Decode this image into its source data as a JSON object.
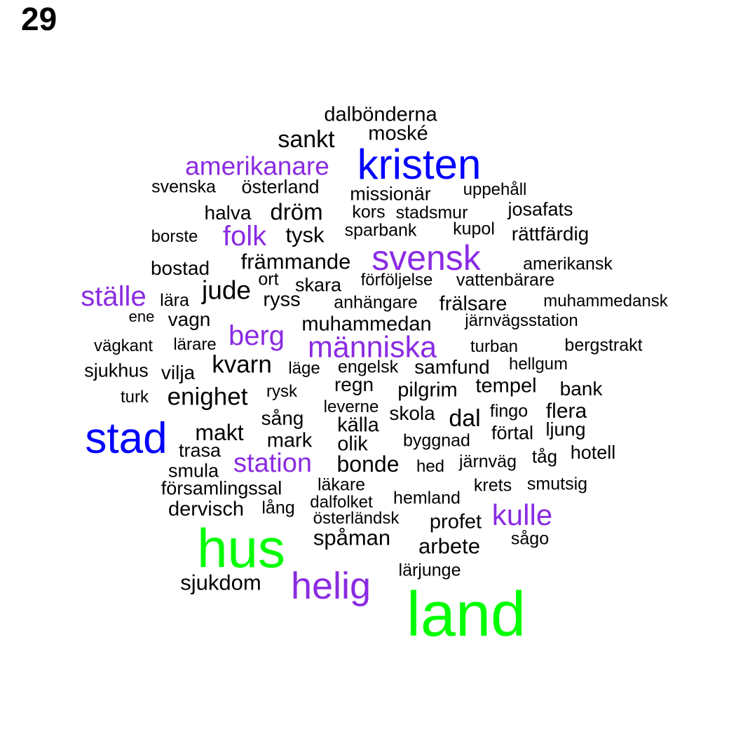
{
  "page_number": "29",
  "colors": {
    "level1": "#00ff00",
    "level2": "#0000ff",
    "level3": "#8a2be2",
    "level4": "#000000"
  },
  "words": [
    {
      "text": "land",
      "level": 1
    },
    {
      "text": "hus",
      "level": 1
    },
    {
      "text": "stad",
      "level": 2
    },
    {
      "text": "kristen",
      "level": 2
    },
    {
      "text": "helig",
      "level": 3
    },
    {
      "text": "svensk",
      "level": 3
    },
    {
      "text": "människa",
      "level": 3
    },
    {
      "text": "amerikanare",
      "level": 3
    },
    {
      "text": "ställe",
      "level": 3
    },
    {
      "text": "kulle",
      "level": 3
    },
    {
      "text": "station",
      "level": 3
    },
    {
      "text": "folk",
      "level": 3
    },
    {
      "text": "berg",
      "level": 3
    },
    {
      "text": "dalbönderna",
      "level": 4
    },
    {
      "text": "moské",
      "level": 4
    },
    {
      "text": "sankt",
      "level": 4
    },
    {
      "text": "svenska",
      "level": 4
    },
    {
      "text": "österland",
      "level": 4
    },
    {
      "text": "missionär",
      "level": 4
    },
    {
      "text": "uppehåll",
      "level": 4
    },
    {
      "text": "halva",
      "level": 4
    },
    {
      "text": "dröm",
      "level": 4
    },
    {
      "text": "kors",
      "level": 4
    },
    {
      "text": "stadsmur",
      "level": 4
    },
    {
      "text": "josafats",
      "level": 4
    },
    {
      "text": "borste",
      "level": 4
    },
    {
      "text": "tysk",
      "level": 4
    },
    {
      "text": "sparbank",
      "level": 4
    },
    {
      "text": "kupol",
      "level": 4
    },
    {
      "text": "rättfärdig",
      "level": 4
    },
    {
      "text": "bostad",
      "level": 4
    },
    {
      "text": "främmande",
      "level": 4
    },
    {
      "text": "amerikansk",
      "level": 4
    },
    {
      "text": "ort",
      "level": 4
    },
    {
      "text": "förföljelse",
      "level": 4
    },
    {
      "text": "vattenbärare",
      "level": 4
    },
    {
      "text": "jude",
      "level": 4
    },
    {
      "text": "skara",
      "level": 4
    },
    {
      "text": "lära",
      "level": 4
    },
    {
      "text": "ryss",
      "level": 4
    },
    {
      "text": "anhängare",
      "level": 4
    },
    {
      "text": "frälsare",
      "level": 4
    },
    {
      "text": "muhammedansk",
      "level": 4
    },
    {
      "text": "ene",
      "level": 4
    },
    {
      "text": "vagn",
      "level": 4
    },
    {
      "text": "muhammedan",
      "level": 4
    },
    {
      "text": "järnvägsstation",
      "level": 4
    },
    {
      "text": "vägkant",
      "level": 4
    },
    {
      "text": "lärare",
      "level": 4
    },
    {
      "text": "turban",
      "level": 4
    },
    {
      "text": "bergstrakt",
      "level": 4
    },
    {
      "text": "sjukhus",
      "level": 4
    },
    {
      "text": "vilja",
      "level": 4
    },
    {
      "text": "kvarn",
      "level": 4
    },
    {
      "text": "läge",
      "level": 4
    },
    {
      "text": "engelsk",
      "level": 4
    },
    {
      "text": "samfund",
      "level": 4
    },
    {
      "text": "hellgum",
      "level": 4
    },
    {
      "text": "regn",
      "level": 4
    },
    {
      "text": "tempel",
      "level": 4
    },
    {
      "text": "turk",
      "level": 4
    },
    {
      "text": "enighet",
      "level": 4
    },
    {
      "text": "rysk",
      "level": 4
    },
    {
      "text": "pilgrim",
      "level": 4
    },
    {
      "text": "bank",
      "level": 4
    },
    {
      "text": "leverne",
      "level": 4
    },
    {
      "text": "sång",
      "level": 4
    },
    {
      "text": "skola",
      "level": 4
    },
    {
      "text": "dal",
      "level": 4
    },
    {
      "text": "fingo",
      "level": 4
    },
    {
      "text": "flera",
      "level": 4
    },
    {
      "text": "källa",
      "level": 4
    },
    {
      "text": "makt",
      "level": 4
    },
    {
      "text": "förtal",
      "level": 4
    },
    {
      "text": "ljung",
      "level": 4
    },
    {
      "text": "mark",
      "level": 4
    },
    {
      "text": "olik",
      "level": 4
    },
    {
      "text": "byggnad",
      "level": 4
    },
    {
      "text": "trasa",
      "level": 4
    },
    {
      "text": "hotell",
      "level": 4
    },
    {
      "text": "tåg",
      "level": 4
    },
    {
      "text": "smula",
      "level": 4
    },
    {
      "text": "bonde",
      "level": 4
    },
    {
      "text": "hed",
      "level": 4
    },
    {
      "text": "järnväg",
      "level": 4
    },
    {
      "text": "församlingssal",
      "level": 4
    },
    {
      "text": "läkare",
      "level": 4
    },
    {
      "text": "krets",
      "level": 4
    },
    {
      "text": "smutsig",
      "level": 4
    },
    {
      "text": "dalfolket",
      "level": 4
    },
    {
      "text": "hemland",
      "level": 4
    },
    {
      "text": "dervisch",
      "level": 4
    },
    {
      "text": "lång",
      "level": 4
    },
    {
      "text": "österländsk",
      "level": 4
    },
    {
      "text": "profet",
      "level": 4
    },
    {
      "text": "spåman",
      "level": 4
    },
    {
      "text": "sågo",
      "level": 4
    },
    {
      "text": "arbete",
      "level": 4
    },
    {
      "text": "lärjunge",
      "level": 4
    },
    {
      "text": "sjukdom",
      "level": 4
    }
  ]
}
